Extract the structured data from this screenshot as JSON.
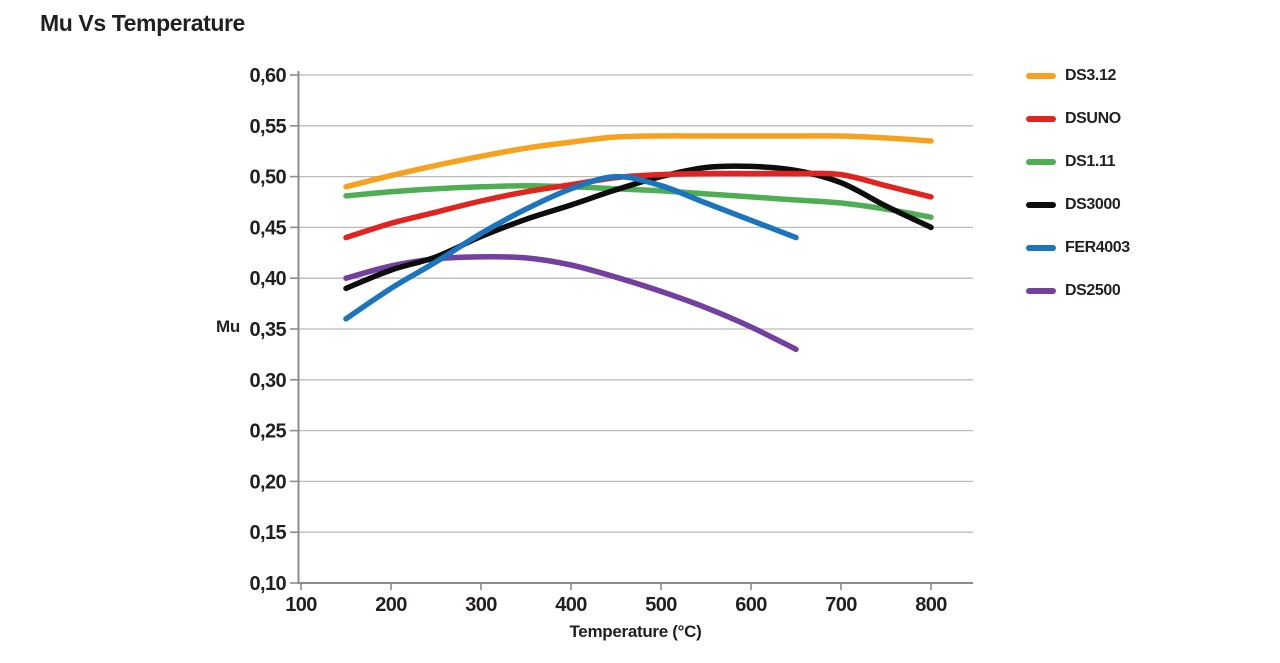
{
  "colors": {
    "text": "#231F20",
    "axis": "#8C8C8C",
    "grid": "#BBBBBB",
    "background": "#FFFFFF"
  },
  "chart_data": {
    "type": "line",
    "title": "Mu Vs Temperature",
    "xlabel": "Temperature (°C)",
    "ylabel": "Mu",
    "xlim": [
      95,
      847
    ],
    "ylim": [
      0.1,
      0.6
    ],
    "grid": "horizontal",
    "legend_position": "right",
    "x_ticks": {
      "values": [
        100,
        200,
        300,
        400,
        500,
        600,
        700,
        800
      ],
      "labels": [
        "100",
        "200",
        "300",
        "400",
        "500",
        "600",
        "700",
        "800"
      ]
    },
    "y_ticks": {
      "values": [
        0.6,
        0.55,
        0.5,
        0.45,
        0.4,
        0.35,
        0.3,
        0.25,
        0.2,
        0.15,
        0.1
      ],
      "labels": [
        "0,60",
        "0,55",
        "0,50",
        "0,45",
        "0,40",
        "0,35",
        "0,30",
        "0,25",
        "0,20",
        "0,15",
        "0,10"
      ]
    },
    "series": [
      {
        "name": "DS3.12",
        "color": "#F7A11E",
        "x": [
          150,
          200,
          250,
          300,
          350,
          400,
          450,
          500,
          550,
          600,
          650,
          700,
          750,
          800
        ],
        "y": [
          0.49,
          0.501,
          0.511,
          0.52,
          0.528,
          0.534,
          0.539,
          0.54,
          0.54,
          0.54,
          0.54,
          0.54,
          0.538,
          0.535
        ]
      },
      {
        "name": "DSUNO",
        "color": "#E02420",
        "x": [
          150,
          200,
          250,
          300,
          350,
          400,
          450,
          500,
          550,
          600,
          650,
          700,
          750,
          800
        ],
        "y": [
          0.44,
          0.454,
          0.465,
          0.476,
          0.485,
          0.492,
          0.499,
          0.502,
          0.503,
          0.503,
          0.503,
          0.502,
          0.491,
          0.48
        ]
      },
      {
        "name": "DS1.11",
        "color": "#4FAE54",
        "x": [
          150,
          200,
          250,
          300,
          350,
          400,
          450,
          500,
          550,
          600,
          650,
          700,
          750,
          800
        ],
        "y": [
          0.481,
          0.485,
          0.488,
          0.49,
          0.491,
          0.49,
          0.488,
          0.486,
          0.483,
          0.48,
          0.477,
          0.474,
          0.468,
          0.46
        ]
      },
      {
        "name": "DS3000",
        "color": "#0D0D0D",
        "x": [
          150,
          200,
          250,
          300,
          350,
          400,
          450,
          500,
          550,
          600,
          650,
          700,
          750,
          800
        ],
        "y": [
          0.39,
          0.408,
          0.421,
          0.441,
          0.458,
          0.472,
          0.487,
          0.5,
          0.509,
          0.51,
          0.506,
          0.494,
          0.471,
          0.45
        ]
      },
      {
        "name": "FER4003",
        "color": "#1C75BC",
        "x": [
          150,
          200,
          250,
          300,
          350,
          400,
          450,
          500,
          550,
          600,
          650
        ],
        "y": [
          0.36,
          0.39,
          0.416,
          0.444,
          0.468,
          0.488,
          0.5,
          0.491,
          0.474,
          0.457,
          0.44
        ]
      },
      {
        "name": "DS2500",
        "color": "#7340A0",
        "x": [
          150,
          200,
          250,
          300,
          350,
          400,
          450,
          500,
          550,
          600,
          650
        ],
        "y": [
          0.4,
          0.412,
          0.419,
          0.421,
          0.42,
          0.413,
          0.401,
          0.387,
          0.371,
          0.352,
          0.33
        ]
      }
    ]
  }
}
